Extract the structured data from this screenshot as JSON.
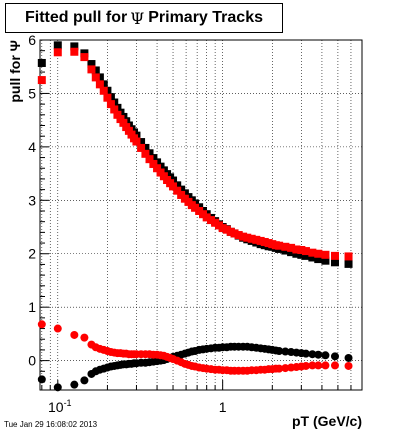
{
  "title": {
    "prefix": "Fitted pull for",
    "symbol": "Ψ",
    "suffix": "Primary Tracks"
  },
  "footer": "Tue Jan 29 16:08:02 2013",
  "chart_data": {
    "type": "scatter",
    "title": "Fitted pull for Ψ  Primary Tracks",
    "xlabel": "pT (GeV/c)",
    "ylabel": "pull for Ψ",
    "xscale": "log",
    "xlim": [
      0.078,
      7.0
    ],
    "ylim": [
      -0.55,
      6.0
    ],
    "yticks": [
      0,
      1,
      2,
      3,
      4,
      5,
      6
    ],
    "xtick_labels": [
      {
        "x": 0.1,
        "text": "10⁻¹"
      },
      {
        "x": 1,
        "text": "1"
      }
    ],
    "grid": true,
    "colors": {
      "sigma_black": "#000000",
      "sigma_red": "#ff0000"
    },
    "series": [
      {
        "marker": "square",
        "color": "#000000",
        "x": [
          0.08,
          0.1,
          0.126,
          0.145,
          0.16,
          0.17,
          0.18,
          0.19,
          0.2,
          0.21,
          0.22,
          0.23,
          0.24,
          0.25,
          0.26,
          0.27,
          0.28,
          0.29,
          0.3,
          0.32,
          0.34,
          0.36,
          0.38,
          0.4,
          0.42,
          0.44,
          0.46,
          0.48,
          0.5,
          0.53,
          0.56,
          0.59,
          0.62,
          0.65,
          0.68,
          0.72,
          0.76,
          0.8,
          0.85,
          0.9,
          0.95,
          1.0,
          1.06,
          1.12,
          1.18,
          1.25,
          1.33,
          1.41,
          1.5,
          1.6,
          1.7,
          1.8,
          1.9,
          2.0,
          2.1,
          2.2,
          2.4,
          2.6,
          2.8,
          3.0,
          3.2,
          3.5,
          3.8,
          4.2,
          4.8,
          5.8
        ],
        "y": [
          5.57,
          5.9,
          5.88,
          5.75,
          5.55,
          5.43,
          5.3,
          5.17,
          5.05,
          4.93,
          4.83,
          4.73,
          4.64,
          4.56,
          4.48,
          4.4,
          4.33,
          4.27,
          4.21,
          4.09,
          3.98,
          3.88,
          3.79,
          3.71,
          3.63,
          3.56,
          3.49,
          3.43,
          3.37,
          3.28,
          3.2,
          3.13,
          3.06,
          3.0,
          2.94,
          2.87,
          2.8,
          2.74,
          2.67,
          2.61,
          2.55,
          2.5,
          2.46,
          2.41,
          2.38,
          2.34,
          2.3,
          2.27,
          2.24,
          2.21,
          2.18,
          2.16,
          2.14,
          2.13,
          2.11,
          2.09,
          2.06,
          2.03,
          2.0,
          1.98,
          1.96,
          1.93,
          1.9,
          1.87,
          1.84,
          1.81
        ]
      },
      {
        "marker": "square",
        "color": "#ff0000",
        "x": [
          0.08,
          0.1,
          0.126,
          0.145,
          0.16,
          0.17,
          0.18,
          0.19,
          0.2,
          0.21,
          0.22,
          0.23,
          0.24,
          0.25,
          0.26,
          0.27,
          0.28,
          0.29,
          0.3,
          0.32,
          0.34,
          0.36,
          0.38,
          0.4,
          0.42,
          0.44,
          0.46,
          0.48,
          0.5,
          0.53,
          0.56,
          0.59,
          0.62,
          0.65,
          0.68,
          0.72,
          0.76,
          0.8,
          0.85,
          0.9,
          0.95,
          1.0,
          1.06,
          1.12,
          1.18,
          1.25,
          1.33,
          1.41,
          1.5,
          1.6,
          1.7,
          1.8,
          1.9,
          2.0,
          2.1,
          2.2,
          2.4,
          2.6,
          2.8,
          3.0,
          3.2,
          3.5,
          3.8,
          4.2,
          4.8,
          5.8
        ],
        "y": [
          5.25,
          5.77,
          5.78,
          5.68,
          5.45,
          5.3,
          5.17,
          5.05,
          4.92,
          4.8,
          4.7,
          4.6,
          4.52,
          4.45,
          4.37,
          4.3,
          4.23,
          4.16,
          4.1,
          3.98,
          3.87,
          3.77,
          3.68,
          3.6,
          3.52,
          3.45,
          3.38,
          3.32,
          3.26,
          3.18,
          3.1,
          3.03,
          2.97,
          2.91,
          2.86,
          2.8,
          2.74,
          2.68,
          2.63,
          2.58,
          2.53,
          2.48,
          2.45,
          2.41,
          2.38,
          2.35,
          2.32,
          2.3,
          2.28,
          2.26,
          2.24,
          2.22,
          2.2,
          2.18,
          2.16,
          2.15,
          2.13,
          2.11,
          2.08,
          2.07,
          2.05,
          2.02,
          2.0,
          1.98,
          1.96,
          1.95
        ]
      },
      {
        "marker": "circle",
        "color": "#000000",
        "x": [
          0.08,
          0.1,
          0.126,
          0.145,
          0.16,
          0.17,
          0.18,
          0.19,
          0.2,
          0.21,
          0.22,
          0.23,
          0.24,
          0.25,
          0.26,
          0.27,
          0.28,
          0.29,
          0.3,
          0.32,
          0.34,
          0.36,
          0.38,
          0.4,
          0.42,
          0.44,
          0.46,
          0.48,
          0.5,
          0.53,
          0.56,
          0.59,
          0.62,
          0.65,
          0.68,
          0.72,
          0.76,
          0.8,
          0.85,
          0.9,
          0.95,
          1.0,
          1.06,
          1.12,
          1.18,
          1.25,
          1.33,
          1.41,
          1.5,
          1.6,
          1.7,
          1.8,
          1.9,
          2.0,
          2.1,
          2.2,
          2.4,
          2.6,
          2.8,
          3.0,
          3.2,
          3.5,
          3.8,
          4.2,
          4.8,
          5.8
        ],
        "y": [
          -0.35,
          -0.5,
          -0.45,
          -0.37,
          -0.25,
          -0.2,
          -0.17,
          -0.15,
          -0.13,
          -0.11,
          -0.1,
          -0.09,
          -0.08,
          -0.07,
          -0.07,
          -0.06,
          -0.06,
          -0.05,
          -0.05,
          -0.04,
          -0.04,
          -0.03,
          -0.02,
          -0.01,
          0.0,
          0.01,
          0.03,
          0.05,
          0.07,
          0.09,
          0.11,
          0.13,
          0.15,
          0.17,
          0.18,
          0.2,
          0.21,
          0.22,
          0.23,
          0.24,
          0.24,
          0.25,
          0.25,
          0.26,
          0.26,
          0.26,
          0.26,
          0.26,
          0.25,
          0.24,
          0.23,
          0.22,
          0.21,
          0.2,
          0.19,
          0.18,
          0.17,
          0.16,
          0.15,
          0.14,
          0.13,
          0.12,
          0.11,
          0.1,
          0.08,
          0.05
        ]
      },
      {
        "marker": "circle",
        "color": "#ff0000",
        "x": [
          0.08,
          0.1,
          0.126,
          0.145,
          0.16,
          0.17,
          0.18,
          0.19,
          0.2,
          0.21,
          0.22,
          0.23,
          0.24,
          0.25,
          0.26,
          0.27,
          0.28,
          0.29,
          0.3,
          0.32,
          0.34,
          0.36,
          0.38,
          0.4,
          0.42,
          0.44,
          0.46,
          0.48,
          0.5,
          0.53,
          0.56,
          0.59,
          0.62,
          0.65,
          0.68,
          0.72,
          0.76,
          0.8,
          0.85,
          0.9,
          0.95,
          1.0,
          1.06,
          1.12,
          1.18,
          1.25,
          1.33,
          1.41,
          1.5,
          1.6,
          1.7,
          1.8,
          1.9,
          2.0,
          2.1,
          2.2,
          2.4,
          2.6,
          2.8,
          3.0,
          3.2,
          3.5,
          3.8,
          4.2,
          4.8,
          5.8
        ],
        "y": [
          0.68,
          0.6,
          0.48,
          0.43,
          0.3,
          0.25,
          0.22,
          0.2,
          0.18,
          0.16,
          0.15,
          0.14,
          0.14,
          0.13,
          0.13,
          0.12,
          0.12,
          0.12,
          0.12,
          0.12,
          0.12,
          0.12,
          0.11,
          0.11,
          0.1,
          0.09,
          0.07,
          0.05,
          0.03,
          0.0,
          -0.03,
          -0.06,
          -0.08,
          -0.1,
          -0.11,
          -0.13,
          -0.14,
          -0.15,
          -0.16,
          -0.17,
          -0.17,
          -0.18,
          -0.18,
          -0.19,
          -0.19,
          -0.19,
          -0.19,
          -0.19,
          -0.18,
          -0.18,
          -0.17,
          -0.17,
          -0.16,
          -0.16,
          -0.15,
          -0.15,
          -0.14,
          -0.13,
          -0.12,
          -0.11,
          -0.1,
          -0.09,
          -0.09,
          -0.09,
          -0.09,
          -0.1
        ]
      }
    ]
  }
}
